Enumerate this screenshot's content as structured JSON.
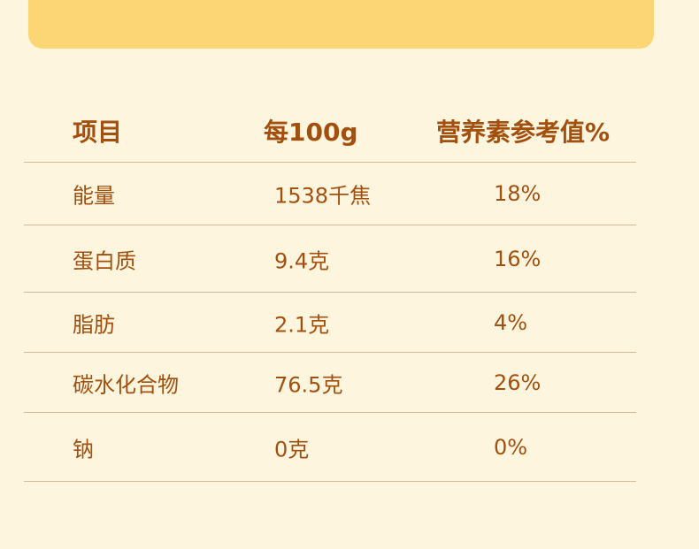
{
  "table": {
    "headers": [
      "项目",
      "每100g",
      "营养素参考值%"
    ],
    "rows": [
      [
        "能量",
        "1538千焦",
        "18%"
      ],
      [
        "蛋白质",
        "9.4克",
        "16%"
      ],
      [
        "脂肪",
        "2.1克",
        "4%"
      ],
      [
        "碳水化合物",
        "76.5克",
        "26%"
      ],
      [
        "钠",
        "0克",
        "0%"
      ]
    ]
  },
  "colors": {
    "background": "#fef5df",
    "banner": "#fcd674",
    "text": "#a3500f",
    "divider": "#d7b89a"
  }
}
